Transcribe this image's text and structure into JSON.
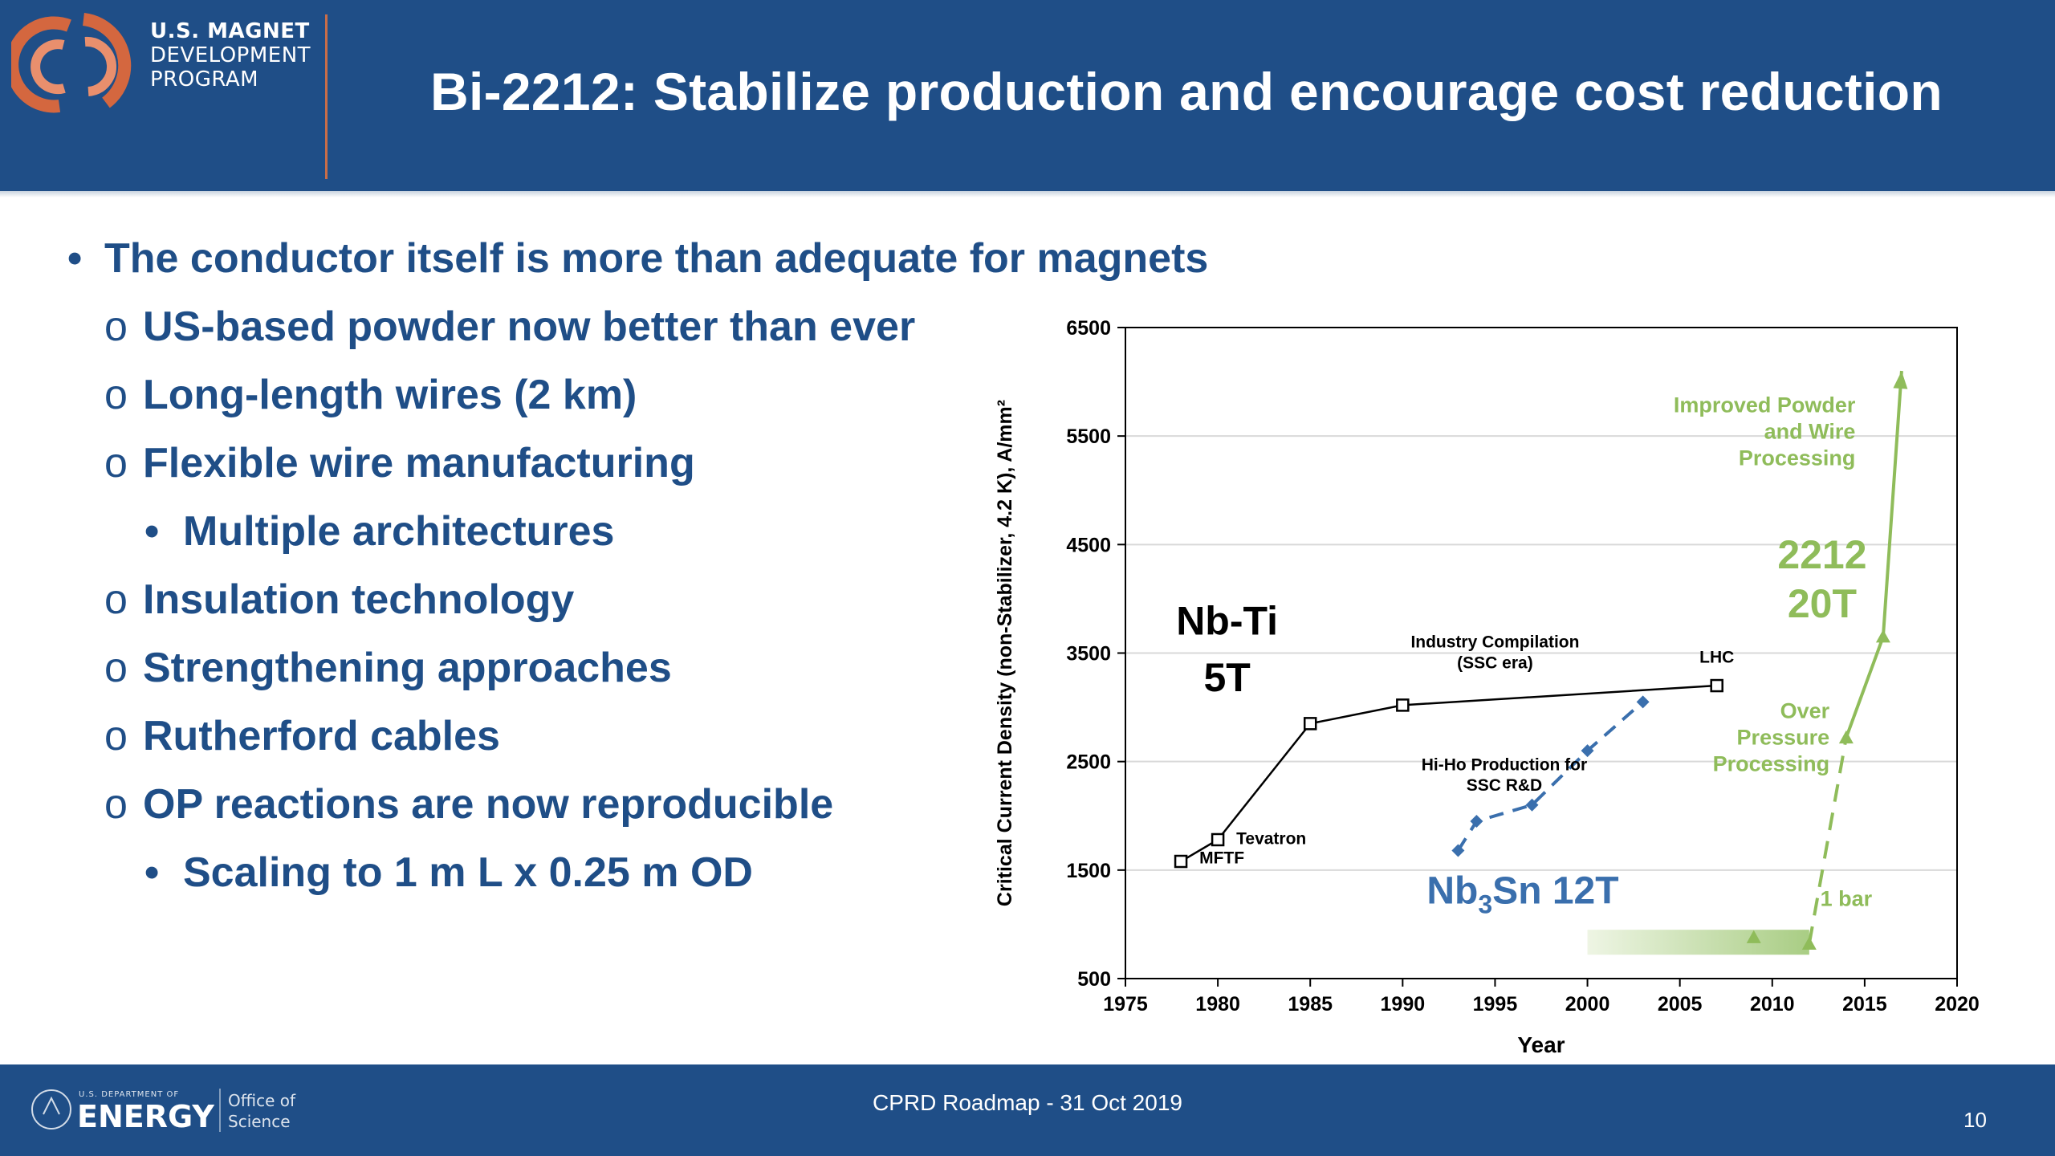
{
  "header": {
    "program_lines": [
      "U.S. MAGNET",
      "DEVELOPMENT",
      "PROGRAM"
    ],
    "title": "Bi-2212: Stabilize production and encourage cost reduction"
  },
  "bullets": [
    {
      "level": 1,
      "mark": "•",
      "text": "The conductor itself is more than adequate for magnets"
    },
    {
      "level": 2,
      "mark": "o",
      "text": "US-based powder now better than ever"
    },
    {
      "level": 2,
      "mark": "o",
      "text": "Long-length wires (2 km)"
    },
    {
      "level": 2,
      "mark": "o",
      "text": "Flexible wire manufacturing"
    },
    {
      "level": 3,
      "mark": "•",
      "text": "Multiple architectures"
    },
    {
      "level": 2,
      "mark": "o",
      "text": "Insulation technology"
    },
    {
      "level": 2,
      "mark": "o",
      "text": "Strengthening approaches"
    },
    {
      "level": 2,
      "mark": "o",
      "text": "Rutherford cables"
    },
    {
      "level": 2,
      "mark": "o",
      "text": "OP reactions are now reproducible"
    },
    {
      "level": 3,
      "mark": "•",
      "text": "Scaling to 1 m L x 0.25 m OD"
    }
  ],
  "chart_data": {
    "type": "line",
    "xlabel": "Year",
    "ylabel": "Critical Current Density (non-Stabilizer, 4.2 K), A/mm²",
    "xlim": [
      1975,
      2020
    ],
    "ylim": [
      500,
      6500
    ],
    "xticks": [
      1975,
      1980,
      1985,
      1990,
      1995,
      2000,
      2005,
      2010,
      2015,
      2020
    ],
    "yticks": [
      500,
      1500,
      2500,
      3500,
      4500,
      5500,
      6500
    ],
    "grid": "horizontal",
    "colors": {
      "nbti": "#000000",
      "nb3sn": "#3a6fad",
      "bi2212": "#8fbc5a",
      "axis": "#000000",
      "grid": "#d9d9d9"
    },
    "series": [
      {
        "name": "Nb-Ti 5T",
        "label_main": "Nb-Ti",
        "label_field": "5T",
        "x": [
          1978,
          1980,
          1985,
          1990,
          2007
        ],
        "y": [
          1580,
          1780,
          2850,
          3020,
          3200
        ]
      },
      {
        "name": "Nb3Sn 12T",
        "label_main": "Nb",
        "label_sub": "3",
        "label_rest": "Sn 12T",
        "x": [
          1993,
          1994,
          1997,
          2000,
          2003
        ],
        "y": [
          1680,
          1950,
          2100,
          2600,
          3050
        ]
      },
      {
        "name": "2212 20T",
        "label_main": "2212",
        "label_field": "20T",
        "segments": [
          {
            "style": "solid",
            "x": [
              2009
            ],
            "y": [
              880
            ]
          },
          {
            "style": "dashed",
            "x": [
              2012,
              2014
            ],
            "y": [
              820,
              2720
            ]
          },
          {
            "style": "solid",
            "x": [
              2014,
              2016,
              2017
            ],
            "y": [
              2720,
              3650,
              6100
            ]
          }
        ]
      }
    ],
    "annotations": [
      {
        "text_lines": [
          "Tevatron"
        ],
        "x": 1981,
        "y": 1740
      },
      {
        "text_lines": [
          "MFTF"
        ],
        "x": 1979,
        "y": 1560
      },
      {
        "text_lines": [
          "Hi-Ho Production for",
          "SSC R&D"
        ],
        "x": 1995.5,
        "y": 2420
      },
      {
        "text_lines": [
          "Industry Compilation",
          "(SSC era)"
        ],
        "x": 1995,
        "y": 3550
      },
      {
        "text_lines": [
          "LHC"
        ],
        "x": 2007,
        "y": 3410
      },
      {
        "text_lines": [
          "Improved Powder",
          "and Wire",
          "Processing"
        ],
        "x": 2014.5,
        "y": 5720
      },
      {
        "text_lines": [
          "Over",
          "Pressure",
          "Processing"
        ],
        "x": 2013.1,
        "y": 2900
      },
      {
        "text_lines": [
          "1 bar"
        ],
        "x": 2014,
        "y": 1170
      }
    ],
    "shaded_band": {
      "x": [
        2000,
        2012
      ],
      "y": [
        720,
        950
      ]
    }
  },
  "footer": {
    "agency_small": "U.S. DEPARTMENT OF",
    "agency": "ENERGY",
    "office_lines": [
      "Office of",
      "Science"
    ],
    "center_text": "CPRD Roadmap - 31 Oct 2019",
    "page_number": "10"
  }
}
